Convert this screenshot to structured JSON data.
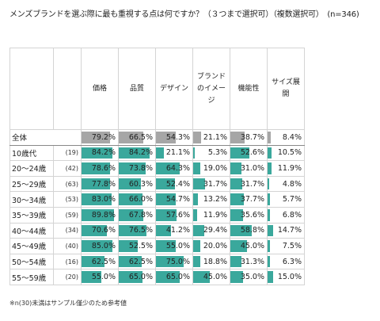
{
  "title": "メンズブランドを選ぶ際に最も重視する点は何ですか？（３つまで選択可）（複数選択可）　(n=346)",
  "footnote": "※n(30)未満はサンプル僅少のため参考値",
  "colors": {
    "total_bar": "#a6a6a6",
    "segment_bar": "#3aa89c"
  },
  "headers": [
    "価格",
    "品質",
    "デザイン",
    "ブランドのイメージ",
    "機能性",
    "サイズ展開"
  ],
  "header_display": [
    [
      "価格"
    ],
    [
      "品質"
    ],
    [
      "デザイン"
    ],
    [
      "ブランド",
      "のイメー",
      "ジ"
    ],
    [
      "機能性"
    ],
    [
      "サイズ展",
      "開"
    ]
  ],
  "chart_data": {
    "type": "table",
    "title": "メンズブランドを選ぶ際に最も重視する点は何ですか？（３つまで選択可）（複数選択可）　(n=346)",
    "columns": [
      "価格",
      "品質",
      "デザイン",
      "ブランドのイメージ",
      "機能性",
      "サイズ展開"
    ],
    "unit": "%",
    "rows": [
      {
        "label": "全体",
        "n": "",
        "values": [
          79.2,
          66.5,
          54.3,
          21.1,
          38.7,
          8.4
        ],
        "total": true
      },
      {
        "label": "10歳代",
        "n": "(19)",
        "values": [
          84.2,
          84.2,
          21.1,
          5.3,
          52.6,
          10.5
        ]
      },
      {
        "label": "20～24歳",
        "n": "(42)",
        "values": [
          78.6,
          73.8,
          64.3,
          19.0,
          31.0,
          11.9
        ]
      },
      {
        "label": "25～29歳",
        "n": "(63)",
        "values": [
          77.8,
          60.3,
          52.4,
          31.7,
          31.7,
          4.8
        ]
      },
      {
        "label": "30～34歳",
        "n": "(53)",
        "values": [
          83.0,
          66.0,
          54.7,
          13.2,
          37.7,
          5.7
        ]
      },
      {
        "label": "35～39歳",
        "n": "(59)",
        "values": [
          89.8,
          67.8,
          57.6,
          11.9,
          35.6,
          6.8
        ]
      },
      {
        "label": "40～44歳",
        "n": "(34)",
        "values": [
          70.6,
          76.5,
          41.2,
          29.4,
          58.8,
          14.7
        ]
      },
      {
        "label": "45～49歳",
        "n": "(40)",
        "values": [
          85.0,
          52.5,
          55.0,
          20.0,
          45.0,
          7.5
        ]
      },
      {
        "label": "50～54歳",
        "n": "(16)",
        "values": [
          62.5,
          62.5,
          75.0,
          18.8,
          31.3,
          6.3
        ]
      },
      {
        "label": "55～59歳",
        "n": "(20)",
        "values": [
          55.0,
          65.0,
          65.0,
          45.0,
          35.0,
          15.0
        ]
      }
    ]
  }
}
